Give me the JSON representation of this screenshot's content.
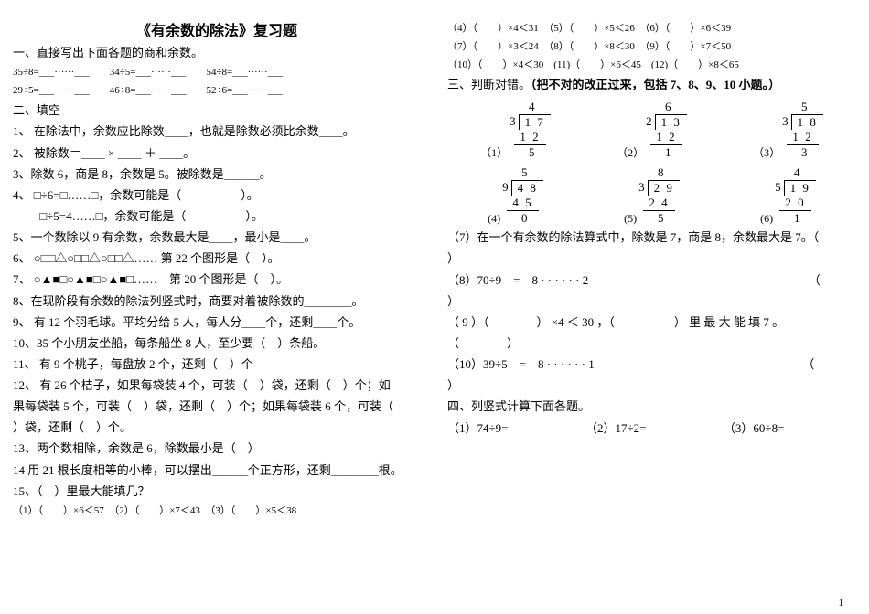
{
  "title": "《有余数的除法》复习题",
  "sec1_head": "一、直接写出下面各题的商和余数。",
  "sec1_l1": "35÷8=___······___　　34÷5=___······___　　54÷8=___······___",
  "sec1_l2": "29÷5=___······___　　46÷8=___······___　　52÷6=___······___",
  "sec2_head": "二、填空",
  "q1": "1、 在除法中，余数应比除数＿＿，也就是除数必须比余数＿＿。",
  "q2": "2、 被除数＝＿＿ × ＿＿ ＋ ＿＿。",
  "q3": "3、除数 6，商是 8，余数是 5。被除数是＿＿＿。",
  "q4a": "4、 □÷6=□……□，余数可能是（　　　　　）。",
  "q4b": "　　 □÷5=4……□，余数可能是（　　　　　）。",
  "q5": "5、一个数除以 9 有余数，余数最大是＿＿，最小是＿＿。",
  "q6": "6、 ○□□△○□□△○□□△…… 第 22 个图形是（　）。",
  "q7": "7、 ○▲■□○▲■□○▲■□……　第 20 个图形是（　）。",
  "q8": "8、在现阶段有余数的除法列竖式时，商要对着被除数的＿＿＿＿。",
  "q9": "9、 有 12 个羽毛球。平均分给 5 人，每人分＿＿个，还剩＿＿个。",
  "q10": "10、35 个小朋友坐船，每条船坐 8 人，至少要（　）条船。",
  "q11": "11、 有 9 个桃子，每盘放 2 个，还剩（　）个",
  "q12a": "12、 有 26 个桔子，如果每袋装 4 个，可装（　）袋，还剩（　）个；如",
  "q12b": "果每袋装 5 个，可装（　）袋，还剩（　）个；如果每袋装 6 个，可装（",
  "q12c": "）袋，还剩（　）个。",
  "q13": "13、两个数相除，余数是 6，除数最小是（　）",
  "q14": "14 用 21 根长度相等的小棒，可以摆出＿＿＿个正方形，还剩＿＿＿＿根。",
  "q15": "15、（　）里最大能填几？",
  "q15r": "（1）（　　）×6＜57　（2）（　　）×7＜43　（3）（　　）×5＜38",
  "r_q15_r2": "（4）（　　）×4＜31　（5）（　　）×5＜26　（6）（　　）×6＜39",
  "r_q15_r3": "（7）（　　）×3＜24　（8）（　　）×8＜30　（9）（　　）×7＜50",
  "r_q15_r4": "（10）（　　）×4＜30　(11)（　　）×6＜45　(12)（　　）×8＜65",
  "sec3_head": "三、判断对错。（把不对的改正过来，包括 7、8、9、10 小题。）",
  "ld": {
    "p1": {
      "label": "（1）",
      "divisor": "3",
      "dividend": "1 7",
      "quotient": "4",
      "step": "1 2",
      "rem": "5"
    },
    "p2": {
      "label": "（2）",
      "divisor": "2",
      "dividend": "1 3",
      "quotient": "6",
      "step": "1 2",
      "rem": "1"
    },
    "p3": {
      "label": "（3）",
      "divisor": "3",
      "dividend": "1 8",
      "quotient": "5",
      "step": "1 2",
      "rem": "3"
    },
    "p4": {
      "label": "(4)",
      "divisor": "9",
      "dividend": "4 8",
      "quotient": "5",
      "step": "4 5",
      "rem": "0"
    },
    "p5": {
      "label": "(5)",
      "divisor": "3",
      "dividend": "2 9",
      "quotient": "8",
      "step": "2 4",
      "rem": "5"
    },
    "p6": {
      "label": "(6)",
      "divisor": "5",
      "dividend": "1 9",
      "quotient": "4",
      "step": "2 0",
      "rem": "1"
    }
  },
  "r_q7a": "（7）在一个有余数的除法算式中，除数是 7，商是 8，余数最大是 7。（",
  "r_q7b": "）",
  "r_q8a": "（8）70÷9　=　8 · · · · · · 2　　　　　　　　　　　　　　　　　　　（",
  "r_q8b": "）",
  "r_q9a": "（ 9 ）（　　　　） ×4 ＜ 30 ，（　　　　　） 里 最 大 能 填 7 。",
  "r_q9b": "（　　　　）",
  "r_q10a": "（10）39÷5　=　8 · · · · · · 1　　　　　　　　　　　　　　　　　　（",
  "r_q10b": "）",
  "sec4_head": "四、列竖式计算下面各题。",
  "sec4_row": "（1）74÷9=　　　　　　　（2）17÷2=　　　　　　　（3）60÷8=",
  "page_number": "1"
}
